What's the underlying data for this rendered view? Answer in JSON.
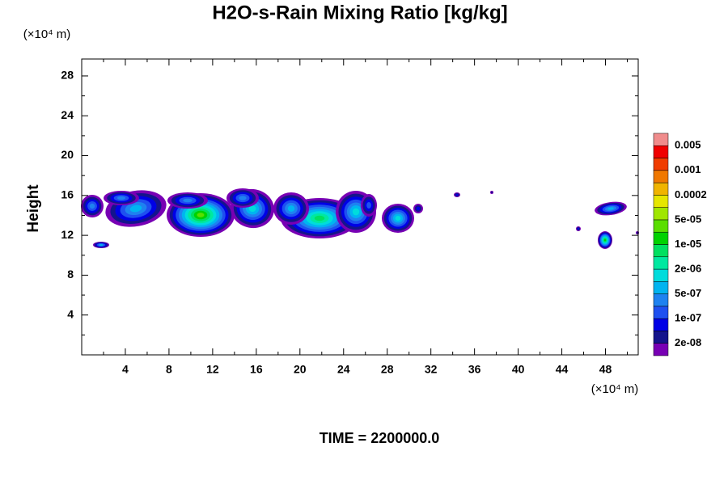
{
  "chart_data": {
    "type": "contour",
    "title": "H2O-s-Rain Mixing Ratio [kg/kg]",
    "y_label": "Height",
    "y_unit": "(×10⁴ m)",
    "x_unit": "(×10⁴ m)",
    "footer": "TIME = 2200000.0",
    "xlim": [
      0,
      51
    ],
    "ylim": [
      0,
      29.7
    ],
    "xticks": [
      4,
      8,
      12,
      16,
      20,
      24,
      28,
      32,
      36,
      40,
      44,
      48
    ],
    "xminorticks": [
      2,
      6,
      10,
      14,
      18,
      22,
      26,
      30,
      34,
      38,
      42,
      46,
      50
    ],
    "yticks": [
      4,
      8,
      12,
      16,
      20,
      24,
      28
    ],
    "yminorticks": [
      2,
      6,
      10,
      14,
      18,
      22,
      26
    ],
    "colorbar_colors": [
      "#7800b4",
      "#14148c",
      "#0000e6",
      "#1e50f0",
      "#1e82f0",
      "#00b4f0",
      "#00dcdc",
      "#00e8a0",
      "#00e060",
      "#00d200",
      "#5ade00",
      "#a0e600",
      "#e6e600",
      "#f0b400",
      "#f07800",
      "#f03c00",
      "#f00000",
      "#f08c8c"
    ],
    "colorbar_labels": [
      "2e-08",
      "1e-07",
      "5e-07",
      "2e-06",
      "1e-05",
      "5e-05",
      "0.0002",
      "0.001",
      "0.005"
    ]
  }
}
